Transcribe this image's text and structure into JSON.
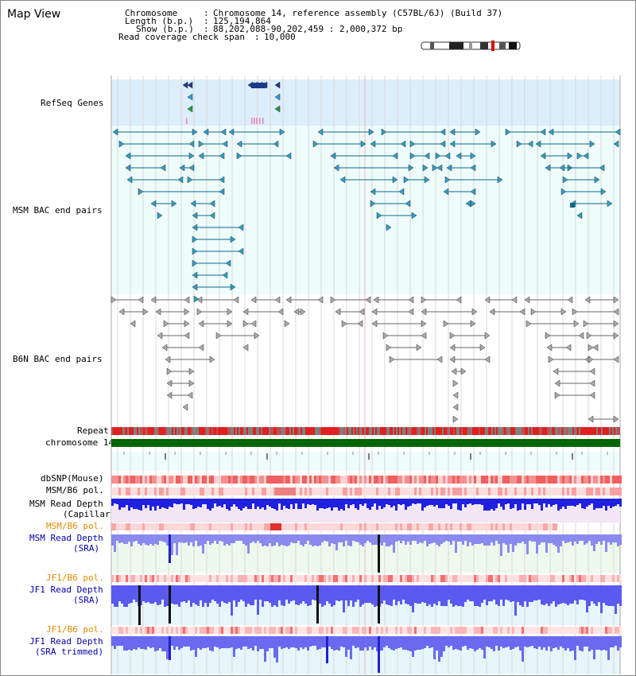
{
  "app": {
    "title": "Map View"
  },
  "header": {
    "chromosome_label": "Chromosome",
    "chromosome_value": "Chromosome 14, reference assembly (C57BL/6J) (Build 37)",
    "length_label": "Length (b.p.)",
    "length_value": "125,194,864",
    "show_label": "Show (b.p.)",
    "show_value": "88,202,088-90,202,459 : 2,000,372 bp",
    "coverage_label": "Read coverage check span",
    "coverage_value": "10,000"
  },
  "tracks": {
    "refseq": {
      "label": "RefSeq Genes",
      "color": "#0000aa",
      "bg": "#dceefa"
    },
    "msm_bac": {
      "label": "MSM BAC end pairs",
      "color": "#0b6a86",
      "bg": "#eefafa"
    },
    "b6n_bac": {
      "label": "B6N BAC end pairs",
      "color": "#666666"
    },
    "repeat": {
      "label": "Repeat"
    },
    "chromosome": {
      "label": "chromosome 14",
      "color": "#006600"
    },
    "dbsnp": {
      "label": "dbSNP(Mouse)"
    },
    "msm_pol": {
      "label": "MSM/B6 pol."
    },
    "msm_depth_cap": {
      "label1": "MSM Read Depth",
      "label2": "(Capillary)"
    },
    "msm_pol_sra": {
      "label": "MSM/B6 pol.",
      "color": "#e08a00"
    },
    "msm_depth_sra": {
      "label1": "MSM Read Depth",
      "label2": "(SRA)",
      "color": "#0000aa"
    },
    "jf1_pol": {
      "label": "JF1/B6 pol.",
      "color": "#e08a00"
    },
    "jf1_depth": {
      "label1": "JF1 Read Depth",
      "label2": "(SRA)",
      "color": "#0000aa"
    },
    "jf1_pol2": {
      "label": "JF1/B6 pol.",
      "color": "#e08a00"
    },
    "jf1_depth_trim": {
      "label1": "JF1 Read Depth",
      "label2": "(SRA trimmed)",
      "color": "#0000aa"
    }
  },
  "axis": {
    "ticks": [
      "88400000",
      "88800000",
      "89200000",
      "89600000",
      "90000000"
    ]
  },
  "icons": {
    "ideogram": "chromosome-ideogram-icon"
  },
  "colors": {
    "refseq": "#1a3a8a",
    "msm": "#0b6a86",
    "b6n": "#666666",
    "depth": "#2a2af0",
    "chrom": "#006600"
  }
}
